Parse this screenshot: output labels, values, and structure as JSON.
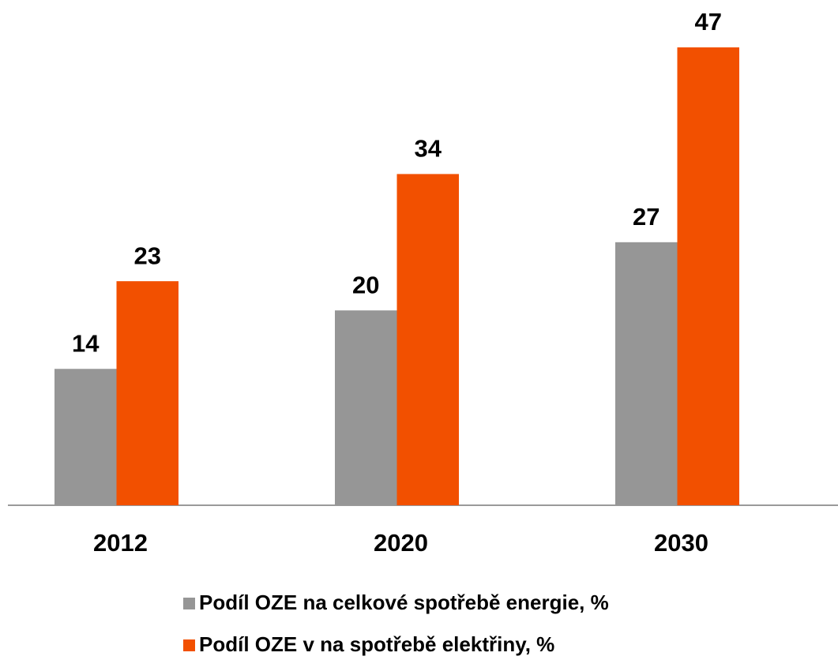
{
  "chart_data": {
    "type": "bar",
    "categories": [
      "2012",
      "2020",
      "2030"
    ],
    "series": [
      {
        "name": "Podíl OZE na celkové spotřebě energie, %",
        "color": "#969696",
        "values": [
          14,
          20,
          27
        ]
      },
      {
        "name": "Podíl OZE v na spotřebě elektřiny, %",
        "color": "#f25000",
        "values": [
          23,
          34,
          47
        ]
      }
    ],
    "ylim": [
      0,
      50
    ]
  }
}
